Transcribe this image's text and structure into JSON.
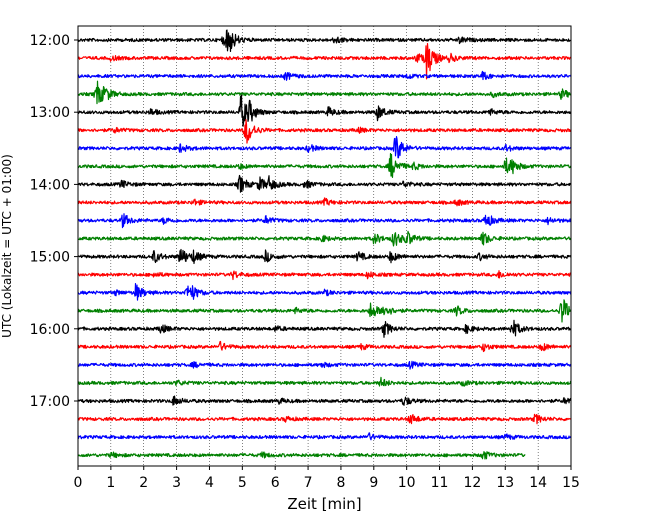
{
  "chart_data": {
    "type": "line",
    "xlabel": "Zeit  [min]",
    "ylabel": "UTC (Lokalzeit = UTC + 01:00)",
    "xlim": [
      0,
      15
    ],
    "x_ticks": [
      "0",
      "1",
      "2",
      "3",
      "4",
      "5",
      "6",
      "7",
      "8",
      "9",
      "10",
      "11",
      "12",
      "13",
      "14",
      "15"
    ],
    "y_ticks": [
      {
        "row": 0,
        "label": "12:00"
      },
      {
        "row": 4,
        "label": "13:00"
      },
      {
        "row": 8,
        "label": "14:00"
      },
      {
        "row": 12,
        "label": "15:00"
      },
      {
        "row": 16,
        "label": "16:00"
      },
      {
        "row": 20,
        "label": "17:00"
      }
    ],
    "grid": "vertical dotted",
    "row_interval_min": 15,
    "color_cycle": [
      "#000000",
      "#ff0000",
      "#0000ff",
      "#008000"
    ],
    "rows": [
      {
        "start": "12:00",
        "events": [
          {
            "t": 4.55,
            "a": 1.0
          },
          {
            "t": 4.4,
            "a": 0.3
          },
          {
            "t": 7.8,
            "a": 0.25
          },
          {
            "t": 11.6,
            "a": 0.2
          }
        ]
      },
      {
        "start": "12:15",
        "events": [
          {
            "t": 10.6,
            "a": 1.3
          },
          {
            "t": 10.3,
            "a": 0.3
          },
          {
            "t": 11.3,
            "a": 0.25
          },
          {
            "t": 1.0,
            "a": 0.15
          }
        ]
      },
      {
        "start": "12:30",
        "events": [
          {
            "t": 6.3,
            "a": 0.25
          },
          {
            "t": 12.3,
            "a": 0.25
          },
          {
            "t": 10.0,
            "a": 0.15
          }
        ]
      },
      {
        "start": "12:45",
        "events": [
          {
            "t": 0.55,
            "a": 0.95
          },
          {
            "t": 0.8,
            "a": 0.3
          },
          {
            "t": 14.7,
            "a": 0.3
          },
          {
            "t": 12.6,
            "a": 0.15
          }
        ]
      },
      {
        "start": "13:00",
        "events": [
          {
            "t": 4.95,
            "a": 1.2
          },
          {
            "t": 5.2,
            "a": 0.5
          },
          {
            "t": 9.1,
            "a": 0.5
          },
          {
            "t": 7.6,
            "a": 0.3
          },
          {
            "t": 2.2,
            "a": 0.2
          },
          {
            "t": 12.5,
            "a": 0.2
          }
        ]
      },
      {
        "start": "13:15",
        "events": [
          {
            "t": 5.1,
            "a": 1.0
          },
          {
            "t": 1.1,
            "a": 0.15
          },
          {
            "t": 8.5,
            "a": 0.15
          }
        ]
      },
      {
        "start": "13:30",
        "events": [
          {
            "t": 9.65,
            "a": 1.0
          },
          {
            "t": 3.1,
            "a": 0.25
          },
          {
            "t": 7.0,
            "a": 0.25
          },
          {
            "t": 13.0,
            "a": 0.2
          }
        ]
      },
      {
        "start": "13:45",
        "events": [
          {
            "t": 9.5,
            "a": 0.9
          },
          {
            "t": 13.0,
            "a": 0.55
          },
          {
            "t": 13.2,
            "a": 0.3
          },
          {
            "t": 4.9,
            "a": 0.15
          },
          {
            "t": 10.2,
            "a": 0.2
          }
        ]
      },
      {
        "start": "14:00",
        "events": [
          {
            "t": 4.9,
            "a": 0.6
          },
          {
            "t": 5.5,
            "a": 0.45
          },
          {
            "t": 5.8,
            "a": 0.4
          },
          {
            "t": 6.9,
            "a": 0.25
          },
          {
            "t": 1.3,
            "a": 0.25
          },
          {
            "t": 9.9,
            "a": 0.2
          }
        ]
      },
      {
        "start": "14:15",
        "events": [
          {
            "t": 3.5,
            "a": 0.2
          },
          {
            "t": 7.5,
            "a": 0.2
          },
          {
            "t": 11.5,
            "a": 0.2
          }
        ]
      },
      {
        "start": "14:30",
        "events": [
          {
            "t": 1.35,
            "a": 0.45
          },
          {
            "t": 12.4,
            "a": 0.5
          },
          {
            "t": 5.7,
            "a": 0.25
          },
          {
            "t": 2.6,
            "a": 0.2
          },
          {
            "t": 14.3,
            "a": 0.2
          }
        ]
      },
      {
        "start": "14:45",
        "events": [
          {
            "t": 9.6,
            "a": 0.55
          },
          {
            "t": 10.0,
            "a": 0.45
          },
          {
            "t": 12.3,
            "a": 0.45
          },
          {
            "t": 9.0,
            "a": 0.35
          },
          {
            "t": 7.4,
            "a": 0.2
          }
        ]
      },
      {
        "start": "15:00",
        "events": [
          {
            "t": 3.1,
            "a": 0.65
          },
          {
            "t": 2.3,
            "a": 0.4
          },
          {
            "t": 3.5,
            "a": 0.35
          },
          {
            "t": 5.7,
            "a": 0.35
          },
          {
            "t": 8.5,
            "a": 0.3
          },
          {
            "t": 9.5,
            "a": 0.35
          },
          {
            "t": 12.2,
            "a": 0.2
          }
        ]
      },
      {
        "start": "15:15",
        "events": [
          {
            "t": 4.7,
            "a": 0.25
          },
          {
            "t": 8.8,
            "a": 0.2
          },
          {
            "t": 12.8,
            "a": 0.2
          },
          {
            "t": 2.3,
            "a": 0.15
          }
        ]
      },
      {
        "start": "15:30",
        "events": [
          {
            "t": 1.75,
            "a": 0.55
          },
          {
            "t": 3.3,
            "a": 0.45
          },
          {
            "t": 3.45,
            "a": 0.3
          },
          {
            "t": 1.1,
            "a": 0.15
          },
          {
            "t": 7.5,
            "a": 0.15
          }
        ]
      },
      {
        "start": "15:45",
        "events": [
          {
            "t": 14.7,
            "a": 1.0
          },
          {
            "t": 8.9,
            "a": 0.55
          },
          {
            "t": 9.3,
            "a": 0.4
          },
          {
            "t": 11.5,
            "a": 0.3
          },
          {
            "t": 6.6,
            "a": 0.15
          }
        ]
      },
      {
        "start": "16:00",
        "events": [
          {
            "t": 13.2,
            "a": 0.65
          },
          {
            "t": 9.3,
            "a": 0.5
          },
          {
            "t": 2.5,
            "a": 0.3
          },
          {
            "t": 11.8,
            "a": 0.25
          },
          {
            "t": 6.0,
            "a": 0.15
          }
        ]
      },
      {
        "start": "16:15",
        "events": [
          {
            "t": 4.3,
            "a": 0.3
          },
          {
            "t": 12.3,
            "a": 0.25
          },
          {
            "t": 14.1,
            "a": 0.25
          },
          {
            "t": 8.6,
            "a": 0.15
          }
        ]
      },
      {
        "start": "16:30",
        "events": [
          {
            "t": 10.1,
            "a": 0.2
          },
          {
            "t": 3.5,
            "a": 0.15
          },
          {
            "t": 7.4,
            "a": 0.15
          }
        ]
      },
      {
        "start": "16:45",
        "events": [
          {
            "t": 9.2,
            "a": 0.3
          },
          {
            "t": 3.0,
            "a": 0.15
          },
          {
            "t": 11.7,
            "a": 0.15
          }
        ]
      },
      {
        "start": "17:00",
        "events": [
          {
            "t": 2.9,
            "a": 0.3
          },
          {
            "t": 9.9,
            "a": 0.3
          },
          {
            "t": 14.8,
            "a": 0.2
          },
          {
            "t": 6.1,
            "a": 0.15
          }
        ]
      },
      {
        "start": "17:15",
        "events": [
          {
            "t": 10.1,
            "a": 0.35
          },
          {
            "t": 13.9,
            "a": 0.3
          },
          {
            "t": 6.3,
            "a": 0.15
          }
        ]
      },
      {
        "start": "17:30",
        "events": [
          {
            "t": 8.8,
            "a": 0.25
          },
          {
            "t": 13.0,
            "a": 0.15
          }
        ]
      },
      {
        "start": "17:45",
        "events": [
          {
            "t": 12.3,
            "a": 0.3
          },
          {
            "t": 1.0,
            "a": 0.15
          },
          {
            "t": 5.6,
            "a": 0.15
          }
        ],
        "end_t": 13.6
      }
    ]
  }
}
